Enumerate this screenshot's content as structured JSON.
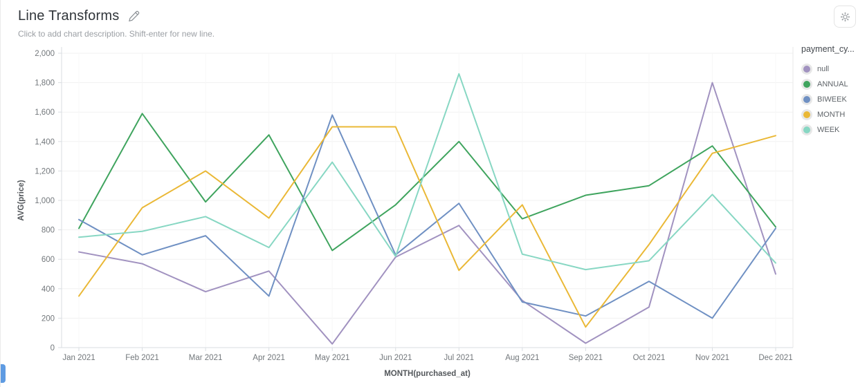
{
  "header": {
    "title": "Line Transforms",
    "subtitle": "Click to add chart description. Shift-enter for new line."
  },
  "legend": {
    "title": "payment_cy...",
    "items": [
      {
        "label": "null",
        "color": "#a192c0"
      },
      {
        "label": "ANNUAL",
        "color": "#3fa45e"
      },
      {
        "label": "BIWEEK",
        "color": "#6f90c3"
      },
      {
        "label": "MONTH",
        "color": "#eab836"
      },
      {
        "label": "WEEK",
        "color": "#87d7c3"
      }
    ]
  },
  "chart_data": {
    "type": "line",
    "title": "Line Transforms",
    "xlabel": "MONTH(purchased_at)",
    "ylabel": "AVG(price)",
    "x": [
      "Jan 2021",
      "Feb 2021",
      "Mar 2021",
      "Apr 2021",
      "May 2021",
      "Jun 2021",
      "Jul 2021",
      "Aug 2021",
      "Sep 2021",
      "Oct 2021",
      "Nov 2021",
      "Dec 2021"
    ],
    "ylim": [
      0,
      2000
    ],
    "ytick_step": 200,
    "ytick_labels": [
      "0",
      "200",
      "400",
      "600",
      "800",
      "1,000",
      "1,200",
      "1,400",
      "1,600",
      "1,800",
      "2,000"
    ],
    "grid": "horizontal",
    "legend_position": "right",
    "series": [
      {
        "name": "null",
        "color": "#a192c0",
        "values": [
          650,
          570,
          380,
          520,
          25,
          615,
          830,
          320,
          30,
          275,
          1800,
          500
        ]
      },
      {
        "name": "ANNUAL",
        "color": "#3fa45e",
        "values": [
          810,
          1590,
          990,
          1445,
          660,
          970,
          1400,
          875,
          1035,
          1100,
          1370,
          820
        ]
      },
      {
        "name": "BIWEEK",
        "color": "#6f90c3",
        "values": [
          870,
          630,
          760,
          350,
          1580,
          630,
          980,
          310,
          215,
          450,
          200,
          810
        ]
      },
      {
        "name": "MONTH",
        "color": "#eab836",
        "values": [
          350,
          950,
          1200,
          880,
          1500,
          1500,
          525,
          970,
          140,
          700,
          1320,
          1440
        ]
      },
      {
        "name": "WEEK",
        "color": "#87d7c3",
        "values": [
          750,
          790,
          890,
          680,
          1260,
          620,
          1860,
          635,
          530,
          590,
          1040,
          575
        ]
      }
    ],
    "colors": {
      "axis_line": "#d9dde2",
      "gridline": "#f1f1f1",
      "vertical_gridline": "#f7f7f7",
      "tick_text": "#72777b",
      "axis_title_text": "#53575b"
    }
  }
}
